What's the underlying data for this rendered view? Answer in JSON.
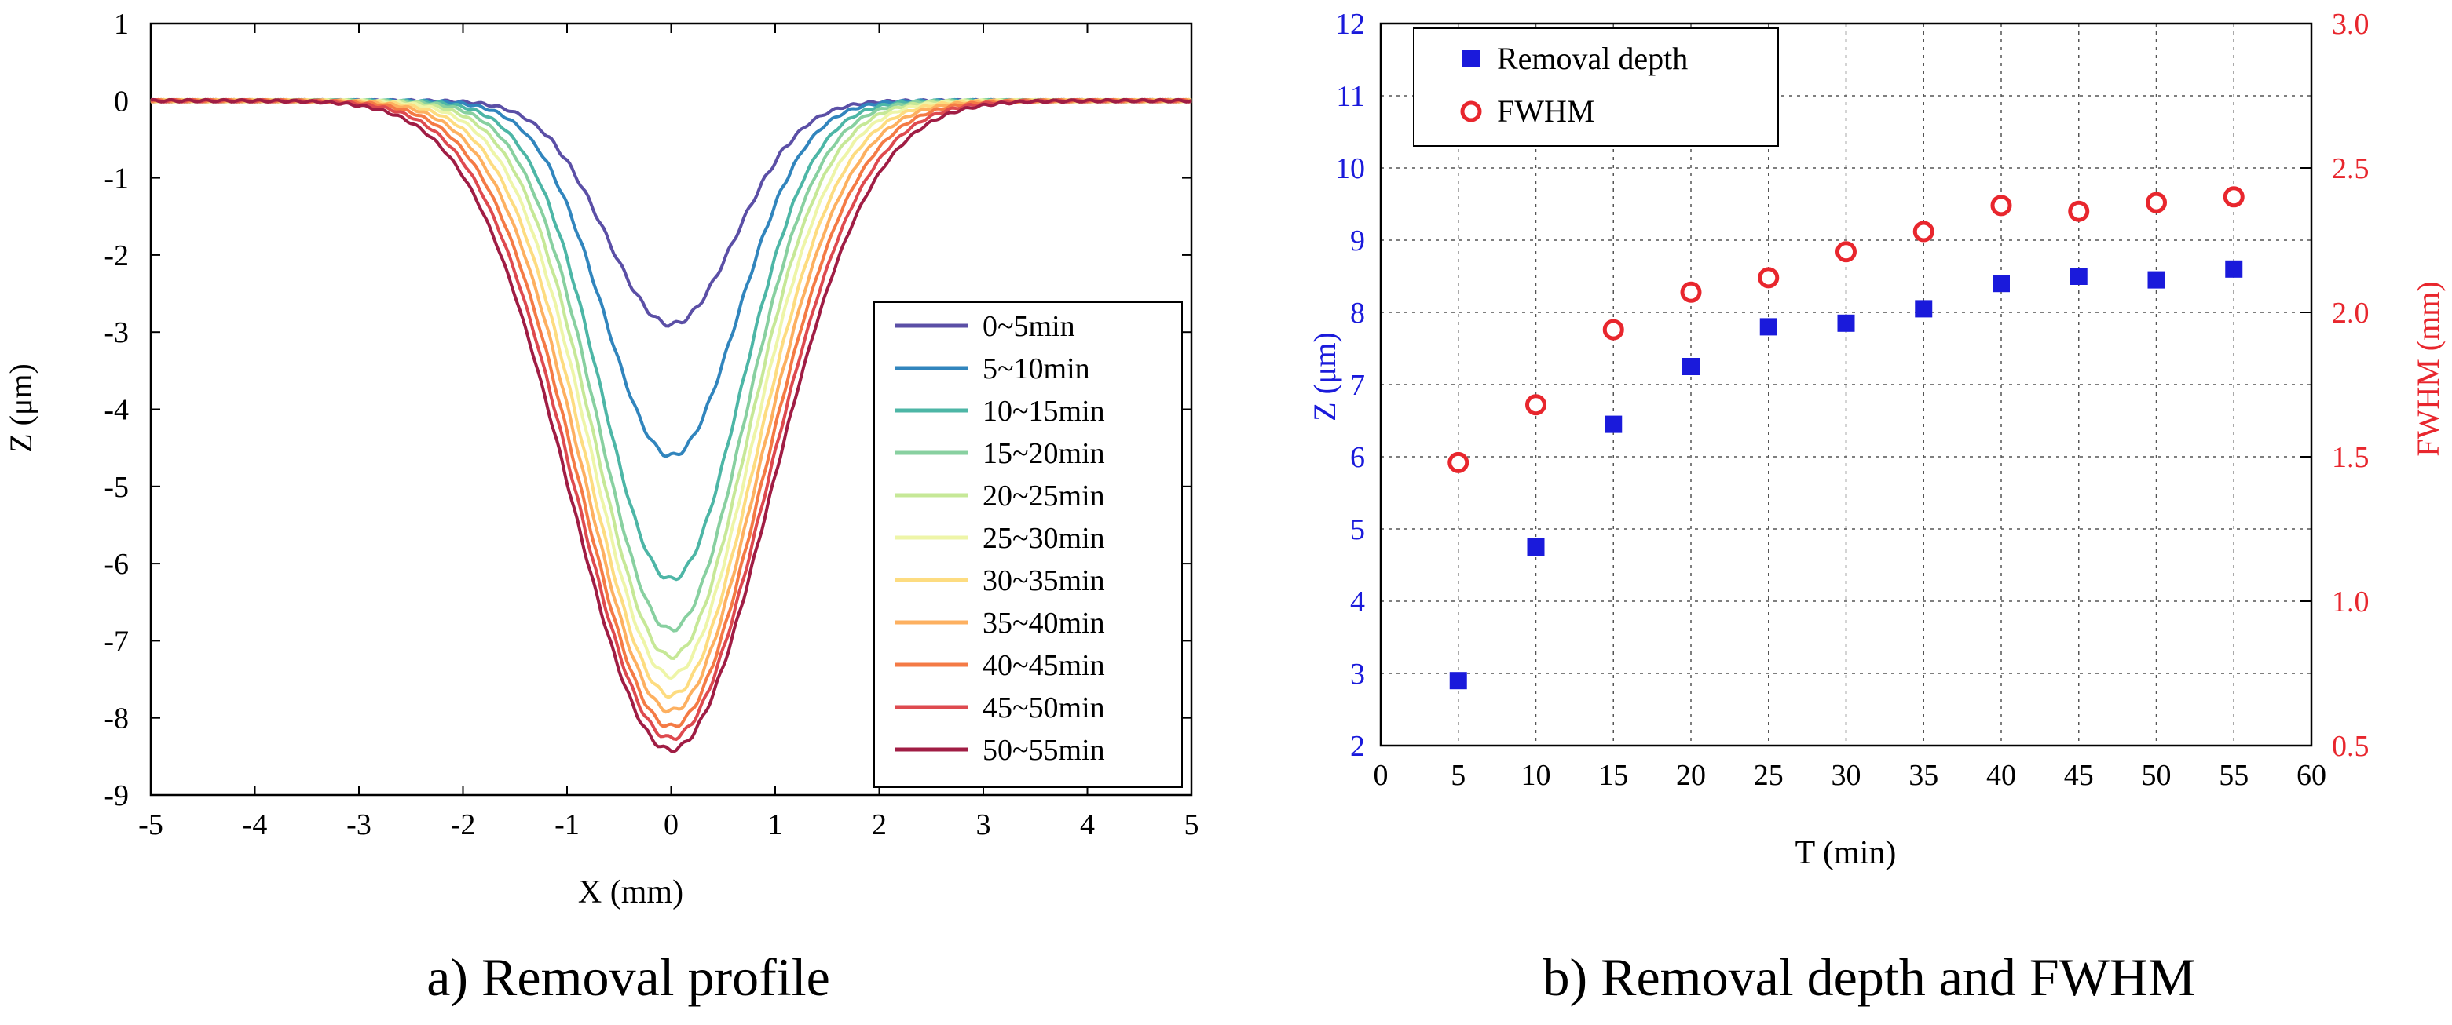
{
  "chart_data": [
    {
      "type": "line",
      "title": "",
      "caption": "a) Removal profile",
      "xlabel": "X (mm)",
      "ylabel": "Z (μm)",
      "xlim": [
        -5,
        5
      ],
      "ylim": [
        -9,
        1
      ],
      "xticks": [
        -5,
        -4,
        -3,
        -2,
        -1,
        0,
        1,
        2,
        3,
        4,
        5
      ],
      "yticks": [
        1,
        0,
        -1,
        -2,
        -3,
        -4,
        -5,
        -6,
        -7,
        -8,
        -9
      ],
      "grid": false,
      "legend_position": "right",
      "profile_shape": "inverted gaussian centered at x = 0, sigma ~ 0.75 mm",
      "series": [
        {
          "name": "0~5min",
          "color": "#5b4fa6",
          "depth": -2.9
        },
        {
          "name": "5~10min",
          "color": "#3185bd",
          "depth": -4.6
        },
        {
          "name": "10~15min",
          "color": "#4db6a6",
          "depth": -6.2
        },
        {
          "name": "15~20min",
          "color": "#88d0a0",
          "depth": -6.85
        },
        {
          "name": "20~25min",
          "color": "#c6e897",
          "depth": -7.2
        },
        {
          "name": "25~30min",
          "color": "#eef5a8",
          "depth": -7.45
        },
        {
          "name": "30~35min",
          "color": "#fddc80",
          "depth": -7.7
        },
        {
          "name": "35~40min",
          "color": "#fdb060",
          "depth": -7.9
        },
        {
          "name": "40~45min",
          "color": "#f47a45",
          "depth": -8.1
        },
        {
          "name": "45~50min",
          "color": "#de4a4f",
          "depth": -8.25
        },
        {
          "name": "50~55min",
          "color": "#a01d44",
          "depth": -8.4
        }
      ]
    },
    {
      "type": "scatter",
      "title": "",
      "caption": "b) Removal depth and FWHM",
      "xlabel": "T (min)",
      "ylabel": "Z (μm)",
      "y2label": "FWHM (mm)",
      "xlim": [
        0,
        60
      ],
      "ylim": [
        2,
        12
      ],
      "y2lim": [
        0.5,
        3.0
      ],
      "xticks": [
        0,
        5,
        10,
        15,
        20,
        25,
        30,
        35,
        40,
        45,
        50,
        55,
        60
      ],
      "yticks": [
        2,
        3,
        4,
        5,
        6,
        7,
        8,
        9,
        10,
        11,
        12
      ],
      "y2ticks": [
        "0.5",
        "1.0",
        "1.5",
        "2.0",
        "2.5",
        "3.0"
      ],
      "grid": true,
      "legend_position": "top-left",
      "x": [
        5,
        10,
        15,
        20,
        25,
        30,
        35,
        40,
        45,
        50,
        55
      ],
      "series": [
        {
          "name": "Removal depth",
          "axis": "left",
          "marker": "square",
          "color": "#1a1adb",
          "values": [
            2.9,
            4.75,
            6.45,
            7.25,
            7.8,
            7.85,
            8.05,
            8.4,
            8.5,
            8.45,
            8.6
          ]
        },
        {
          "name": "FWHM",
          "axis": "right",
          "marker": "circle",
          "color": "#e8262d",
          "values": [
            1.48,
            1.68,
            1.94,
            2.07,
            2.12,
            2.21,
            2.28,
            2.37,
            2.35,
            2.38,
            2.4
          ]
        }
      ],
      "colors": {
        "left_axis": "#1a1adb",
        "right_axis": "#e8262d"
      }
    }
  ]
}
